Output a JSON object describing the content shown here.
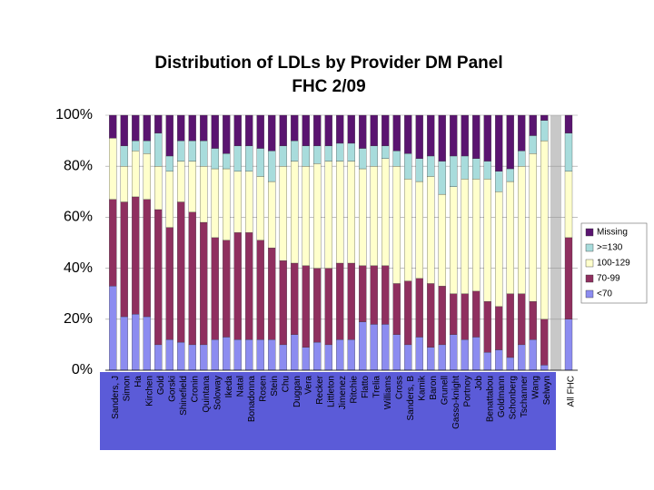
{
  "chart_data": {
    "type": "stacked-bar-100",
    "title": "Distribution of LDLs by Provider DM Panel",
    "subtitle": "FHC 2/09",
    "categories": [
      "Sanders, J",
      "Simon",
      "Ha",
      "Kirchen",
      "Gold",
      "Gorski",
      "Shinefield",
      "Cronin",
      "Quintana",
      "Soloway",
      "Ikeda",
      "Natal",
      "Bonadonna",
      "Rosen",
      "Stein",
      "Chu",
      "Duggan",
      "Vera",
      "Recker",
      "Littleton",
      "Jimenez",
      "Ritchie",
      "Flatto",
      "Trelia",
      "Williams",
      "Cross",
      "Sanders, B",
      "Kamik",
      "Baron",
      "Grunell",
      "Gasso-knight",
      "Portnoy",
      "Job",
      "Benattabou",
      "Goldmann",
      "Schonberg",
      "Tschanner",
      "Wang",
      "Selwyn",
      "All FHC"
    ],
    "series": [
      {
        "name": "<70",
        "color": "#8c8cf0",
        "values": [
          33,
          21,
          22,
          21,
          10,
          12,
          11,
          10,
          10,
          12,
          13,
          12,
          12,
          12,
          12,
          10,
          14,
          9,
          11,
          10,
          12,
          12,
          19,
          18,
          18,
          14,
          10,
          13,
          9,
          10,
          14,
          12,
          13,
          7,
          8,
          5,
          10,
          12,
          2,
          20
        ]
      },
      {
        "name": "70-99",
        "color": "#8f2f5f",
        "values": [
          34,
          45,
          46,
          46,
          53,
          44,
          55,
          52,
          48,
          40,
          38,
          42,
          42,
          39,
          36,
          33,
          28,
          32,
          29,
          30,
          30,
          30,
          22,
          23,
          23,
          20,
          25,
          23,
          25,
          23,
          16,
          18,
          18,
          20,
          17,
          25,
          20,
          15,
          18,
          32
        ]
      },
      {
        "name": "100-129",
        "color": "#ffffcc",
        "values": [
          24,
          14,
          18,
          18,
          17,
          22,
          16,
          20,
          22,
          27,
          28,
          24,
          24,
          25,
          26,
          37,
          40,
          39,
          41,
          42,
          40,
          40,
          38,
          39,
          42,
          46,
          40,
          38,
          42,
          36,
          42,
          45,
          44,
          48,
          45,
          44,
          50,
          58,
          70,
          26
        ]
      },
      {
        "name": ">=130",
        "color": "#a8dcdc",
        "values": [
          0,
          8,
          4,
          5,
          13,
          6,
          8,
          8,
          10,
          8,
          6,
          10,
          10,
          11,
          12,
          8,
          8,
          8,
          7,
          6,
          7,
          7,
          8,
          8,
          5,
          6,
          10,
          9,
          8,
          13,
          12,
          9,
          8,
          7,
          8,
          5,
          6,
          7,
          8,
          15
        ]
      },
      {
        "name": "Missing",
        "color": "#5a1470",
        "values": [
          9,
          12,
          10,
          10,
          7,
          16,
          10,
          10,
          10,
          13,
          15,
          12,
          12,
          13,
          14,
          12,
          10,
          12,
          12,
          12,
          11,
          11,
          13,
          12,
          12,
          14,
          15,
          17,
          16,
          18,
          16,
          16,
          17,
          18,
          22,
          21,
          14,
          8,
          2,
          7
        ]
      }
    ],
    "ylim": [
      0,
      100
    ],
    "yticks": [
      {
        "value": 0,
        "label": "0%"
      },
      {
        "value": 20,
        "label": "20%"
      },
      {
        "value": 40,
        "label": "40%"
      },
      {
        "value": 60,
        "label": "60%"
      },
      {
        "value": 80,
        "label": "80%"
      },
      {
        "value": 100,
        "label": "100%"
      }
    ],
    "grid": true,
    "legend": "right"
  }
}
